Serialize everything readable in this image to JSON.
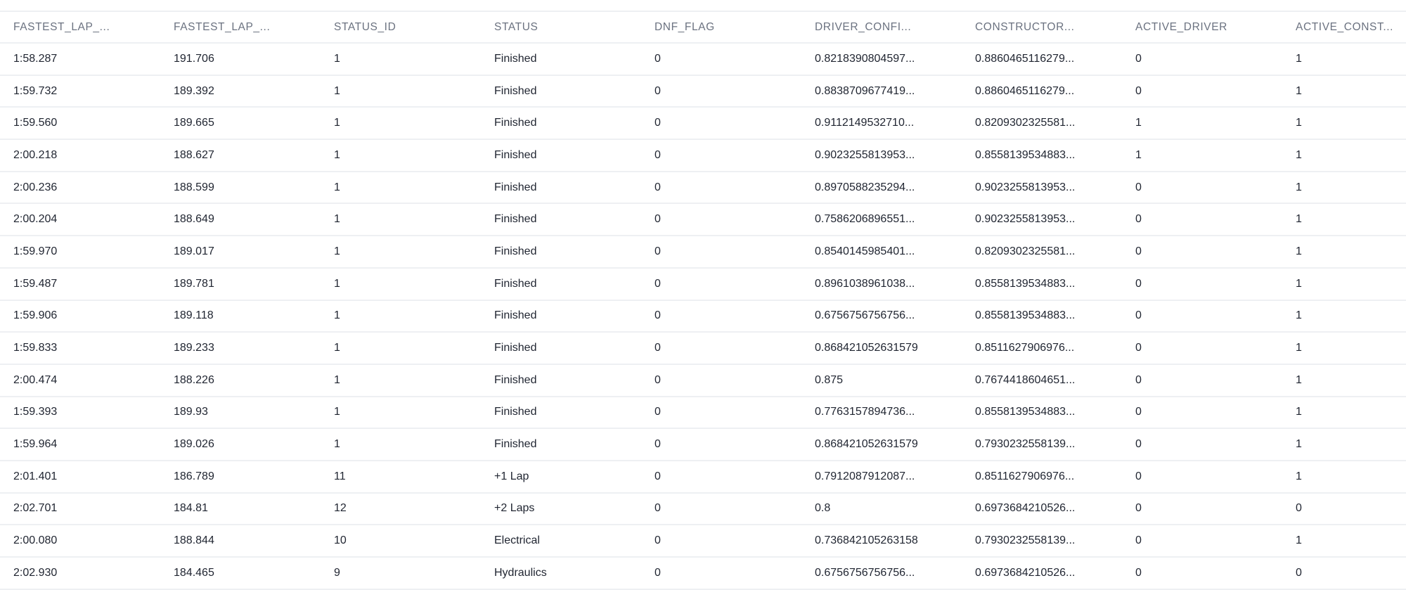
{
  "table": {
    "columns": [
      "FASTEST_LAP_...",
      "FASTEST_LAP_...",
      "STATUS_ID",
      "STATUS",
      "DNF_FLAG",
      "DRIVER_CONFI...",
      "CONSTRUCTOR...",
      "ACTIVE_DRIVER",
      "ACTIVE_CONST..."
    ],
    "rows": [
      [
        "1:58.287",
        "191.706",
        "1",
        "Finished",
        "0",
        "0.8218390804597...",
        "0.8860465116279...",
        "0",
        "1"
      ],
      [
        "1:59.732",
        "189.392",
        "1",
        "Finished",
        "0",
        "0.8838709677419...",
        "0.8860465116279...",
        "0",
        "1"
      ],
      [
        "1:59.560",
        "189.665",
        "1",
        "Finished",
        "0",
        "0.9112149532710...",
        "0.8209302325581...",
        "1",
        "1"
      ],
      [
        "2:00.218",
        "188.627",
        "1",
        "Finished",
        "0",
        "0.9023255813953...",
        "0.8558139534883...",
        "1",
        "1"
      ],
      [
        "2:00.236",
        "188.599",
        "1",
        "Finished",
        "0",
        "0.8970588235294...",
        "0.9023255813953...",
        "0",
        "1"
      ],
      [
        "2:00.204",
        "188.649",
        "1",
        "Finished",
        "0",
        "0.7586206896551...",
        "0.9023255813953...",
        "0",
        "1"
      ],
      [
        "1:59.970",
        "189.017",
        "1",
        "Finished",
        "0",
        "0.8540145985401...",
        "0.8209302325581...",
        "0",
        "1"
      ],
      [
        "1:59.487",
        "189.781",
        "1",
        "Finished",
        "0",
        "0.8961038961038...",
        "0.8558139534883...",
        "0",
        "1"
      ],
      [
        "1:59.906",
        "189.118",
        "1",
        "Finished",
        "0",
        "0.6756756756756...",
        "0.8558139534883...",
        "0",
        "1"
      ],
      [
        "1:59.833",
        "189.233",
        "1",
        "Finished",
        "0",
        "0.868421052631579",
        "0.8511627906976...",
        "0",
        "1"
      ],
      [
        "2:00.474",
        "188.226",
        "1",
        "Finished",
        "0",
        "0.875",
        "0.7674418604651...",
        "0",
        "1"
      ],
      [
        "1:59.393",
        "189.93",
        "1",
        "Finished",
        "0",
        "0.7763157894736...",
        "0.8558139534883...",
        "0",
        "1"
      ],
      [
        "1:59.964",
        "189.026",
        "1",
        "Finished",
        "0",
        "0.868421052631579",
        "0.7930232558139...",
        "0",
        "1"
      ],
      [
        "2:01.401",
        "186.789",
        "11",
        "+1 Lap",
        "0",
        "0.7912087912087...",
        "0.8511627906976...",
        "0",
        "1"
      ],
      [
        "2:02.701",
        "184.81",
        "12",
        "+2 Laps",
        "0",
        "0.8",
        "0.6973684210526...",
        "0",
        "0"
      ],
      [
        "2:00.080",
        "188.844",
        "10",
        "Electrical",
        "0",
        "0.736842105263158",
        "0.7930232558139...",
        "0",
        "1"
      ],
      [
        "2:02.930",
        "184.465",
        "9",
        "Hydraulics",
        "0",
        "0.6756756756756...",
        "0.6973684210526...",
        "0",
        "0"
      ]
    ]
  }
}
